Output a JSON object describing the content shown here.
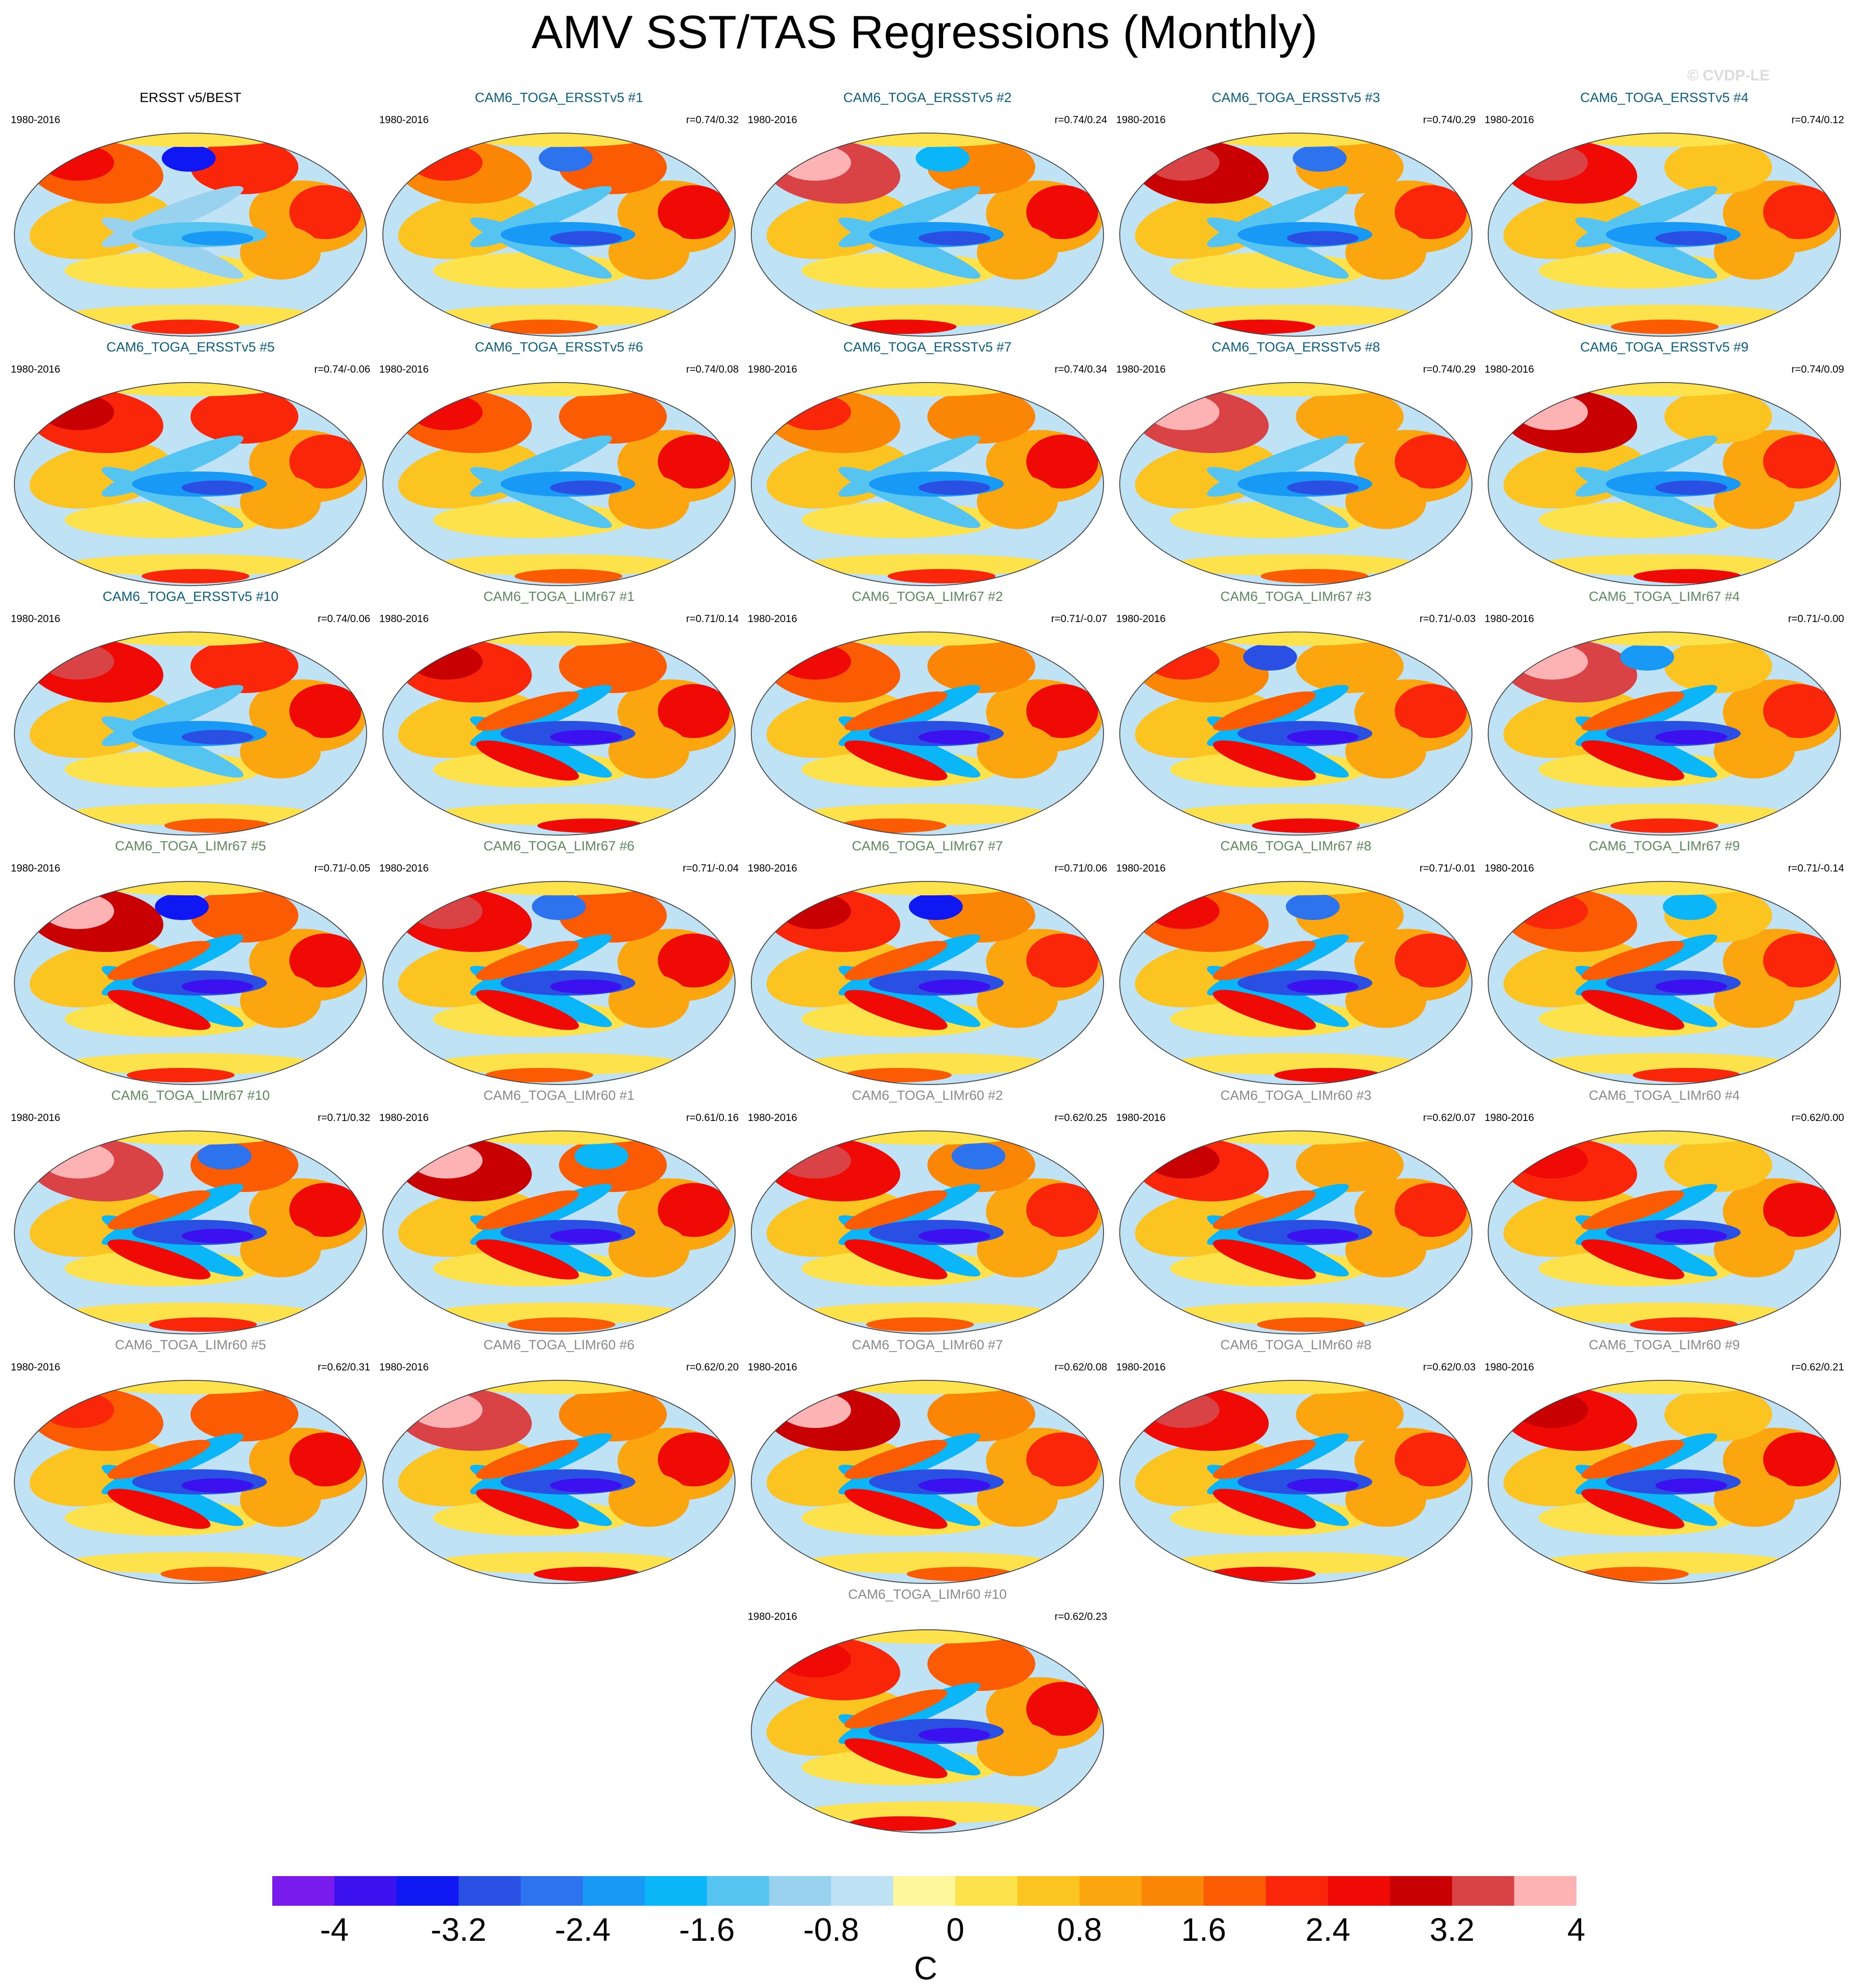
{
  "title": "AMV SST/TAS Regressions (Monthly)",
  "copyright": "© CVDP-LE",
  "chart_data": {
    "type": "heatmap",
    "title": "AMV SST/TAS Regressions (Monthly)",
    "projection": "global map (elliptical)",
    "colorbar": {
      "unit": "C",
      "tick_labels": [
        "-4",
        "-3.2",
        "-2.4",
        "-1.6",
        "-0.8",
        "0",
        "0.8",
        "1.6",
        "2.4",
        "3.2",
        "4"
      ],
      "colors": [
        "#7b1cef",
        "#3b11ef",
        "#0f18f2",
        "#2a50e3",
        "#2d73ee",
        "#1799f5",
        "#0ab5f8",
        "#56c4f1",
        "#98d2ef",
        "#bfe2f5",
        "#fff79a",
        "#fde24b",
        "#fcc421",
        "#fba60f",
        "#fb8505",
        "#fb5b03",
        "#f9260a",
        "#ef0a05",
        "#c80001",
        "#d94345",
        "#fdb2b3"
      ]
    },
    "panels": [
      {
        "title": "ERSST v5/BEST",
        "period": "1980-2016",
        "corr": "",
        "group": "obs"
      },
      {
        "title": "CAM6_TOGA_ERSSTv5 #1",
        "period": "1980-2016",
        "corr": "r=0.74/0.32",
        "group": "ersst"
      },
      {
        "title": "CAM6_TOGA_ERSSTv5 #2",
        "period": "1980-2016",
        "corr": "r=0.74/0.24",
        "group": "ersst"
      },
      {
        "title": "CAM6_TOGA_ERSSTv5 #3",
        "period": "1980-2016",
        "corr": "r=0.74/0.29",
        "group": "ersst"
      },
      {
        "title": "CAM6_TOGA_ERSSTv5 #4",
        "period": "1980-2016",
        "corr": "r=0.74/0.12",
        "group": "ersst"
      },
      {
        "title": "CAM6_TOGA_ERSSTv5 #5",
        "period": "1980-2016",
        "corr": "r=0.74/-0.06",
        "group": "ersst"
      },
      {
        "title": "CAM6_TOGA_ERSSTv5 #6",
        "period": "1980-2016",
        "corr": "r=0.74/0.08",
        "group": "ersst"
      },
      {
        "title": "CAM6_TOGA_ERSSTv5 #7",
        "period": "1980-2016",
        "corr": "r=0.74/0.34",
        "group": "ersst"
      },
      {
        "title": "CAM6_TOGA_ERSSTv5 #8",
        "period": "1980-2016",
        "corr": "r=0.74/0.29",
        "group": "ersst"
      },
      {
        "title": "CAM6_TOGA_ERSSTv5 #9",
        "period": "1980-2016",
        "corr": "r=0.74/0.09",
        "group": "ersst"
      },
      {
        "title": "CAM6_TOGA_ERSSTv5 #10",
        "period": "1980-2016",
        "corr": "r=0.74/0.06",
        "group": "ersst"
      },
      {
        "title": "CAM6_TOGA_LIMr67 #1",
        "period": "1980-2016",
        "corr": "r=0.71/0.14",
        "group": "limr67"
      },
      {
        "title": "CAM6_TOGA_LIMr67 #2",
        "period": "1980-2016",
        "corr": "r=0.71/-0.07",
        "group": "limr67"
      },
      {
        "title": "CAM6_TOGA_LIMr67 #3",
        "period": "1980-2016",
        "corr": "r=0.71/-0.03",
        "group": "limr67"
      },
      {
        "title": "CAM6_TOGA_LIMr67 #4",
        "period": "1980-2016",
        "corr": "r=0.71/-0.00",
        "group": "limr67"
      },
      {
        "title": "CAM6_TOGA_LIMr67 #5",
        "period": "1980-2016",
        "corr": "r=0.71/-0.05",
        "group": "limr67"
      },
      {
        "title": "CAM6_TOGA_LIMr67 #6",
        "period": "1980-2016",
        "corr": "r=0.71/-0.04",
        "group": "limr67"
      },
      {
        "title": "CAM6_TOGA_LIMr67 #7",
        "period": "1980-2016",
        "corr": "r=0.71/0.06",
        "group": "limr67"
      },
      {
        "title": "CAM6_TOGA_LIMr67 #8",
        "period": "1980-2016",
        "corr": "r=0.71/-0.01",
        "group": "limr67"
      },
      {
        "title": "CAM6_TOGA_LIMr67 #9",
        "period": "1980-2016",
        "corr": "r=0.71/-0.14",
        "group": "limr67"
      },
      {
        "title": "CAM6_TOGA_LIMr67 #10",
        "period": "1980-2016",
        "corr": "r=0.71/0.32",
        "group": "limr67"
      },
      {
        "title": "CAM6_TOGA_LIMr60 #1",
        "period": "1980-2016",
        "corr": "r=0.61/0.16",
        "group": "limr60"
      },
      {
        "title": "CAM6_TOGA_LIMr60 #2",
        "period": "1980-2016",
        "corr": "r=0.62/0.25",
        "group": "limr60"
      },
      {
        "title": "CAM6_TOGA_LIMr60 #3",
        "period": "1980-2016",
        "corr": "r=0.62/0.07",
        "group": "limr60"
      },
      {
        "title": "CAM6_TOGA_LIMr60 #4",
        "period": "1980-2016",
        "corr": "r=0.62/0.00",
        "group": "limr60"
      },
      {
        "title": "CAM6_TOGA_LIMr60 #5",
        "period": "1980-2016",
        "corr": "r=0.62/0.31",
        "group": "limr60"
      },
      {
        "title": "CAM6_TOGA_LIMr60 #6",
        "period": "1980-2016",
        "corr": "r=0.62/0.20",
        "group": "limr60"
      },
      {
        "title": "CAM6_TOGA_LIMr60 #7",
        "period": "1980-2016",
        "corr": "r=0.62/0.08",
        "group": "limr60"
      },
      {
        "title": "CAM6_TOGA_LIMr60 #8",
        "period": "1980-2016",
        "corr": "r=0.62/0.03",
        "group": "limr60"
      },
      {
        "title": "CAM6_TOGA_LIMr60 #9",
        "period": "1980-2016",
        "corr": "r=0.62/0.21",
        "group": "limr60"
      },
      {
        "title": "CAM6_TOGA_LIMr60 #10",
        "period": "1980-2016",
        "corr": "r=0.62/0.23",
        "group": "limr60"
      }
    ],
    "group_title_colors": {
      "obs": "#000000",
      "ersst": "#0a5f85",
      "limr67": "#5c8a5c",
      "limr60": "#8a8a8a"
    }
  }
}
